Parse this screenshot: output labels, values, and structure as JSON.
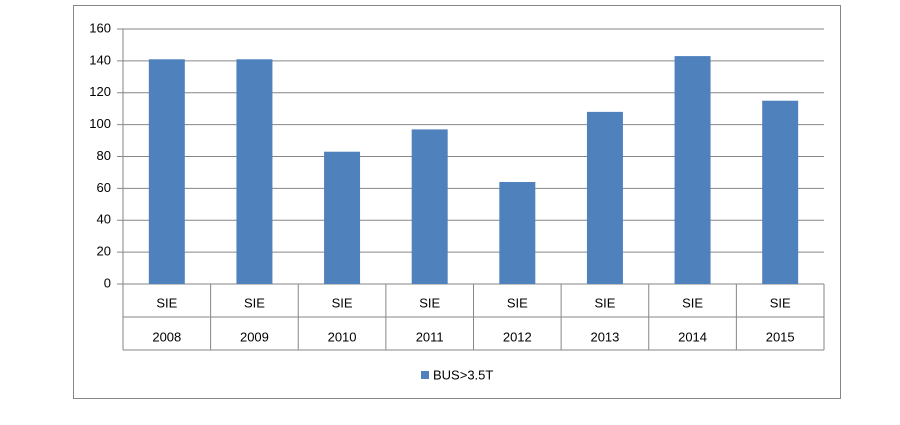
{
  "chart_data": {
    "type": "bar",
    "categories": [
      [
        "SIE",
        "2008"
      ],
      [
        "SIE",
        "2009"
      ],
      [
        "SIE",
        "2010"
      ],
      [
        "SIE",
        "2011"
      ],
      [
        "SIE",
        "2012"
      ],
      [
        "SIE",
        "2013"
      ],
      [
        "SIE",
        "2014"
      ],
      [
        "SIE",
        "2015"
      ]
    ],
    "series": [
      {
        "name": "BUS>3.5T",
        "color": "#4f81bd",
        "values": [
          141,
          141,
          83,
          97,
          64,
          108,
          143,
          115
        ]
      }
    ],
    "ylim": [
      0,
      160
    ],
    "yticks": [
      0,
      20,
      40,
      60,
      80,
      100,
      120,
      140,
      160
    ],
    "grid": true,
    "legend": "bottom"
  }
}
